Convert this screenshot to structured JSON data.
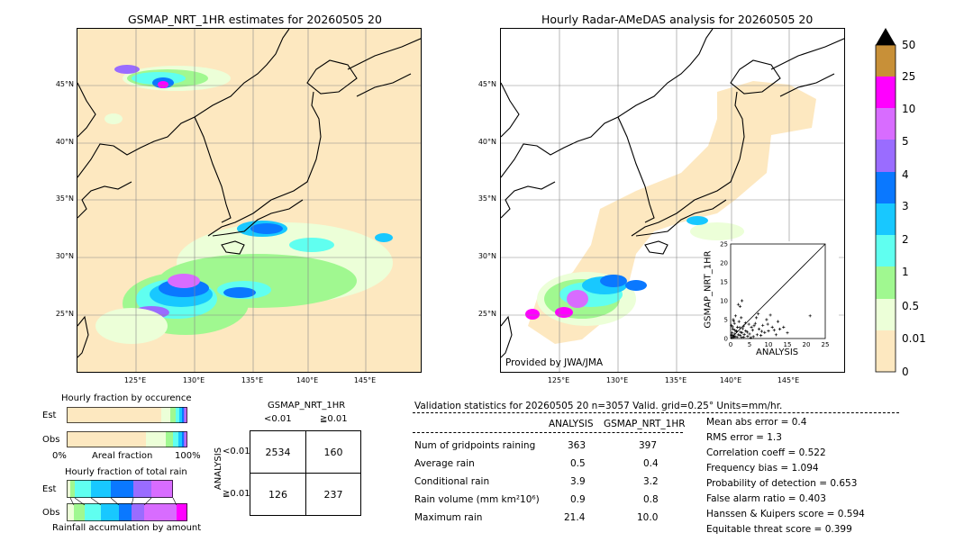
{
  "left_map": {
    "title": "GSMAP_NRT_1HR estimates for 20260505 20",
    "lat_labels": [
      "45°N",
      "40°N",
      "35°N",
      "30°N",
      "25°N"
    ],
    "lon_labels": [
      "125°E",
      "130°E",
      "135°E",
      "140°E",
      "145°E"
    ]
  },
  "right_map": {
    "title": "Hourly Radar-AMeDAS analysis for 20260505 20",
    "lat_labels": [
      "45°N",
      "40°N",
      "35°N",
      "30°N",
      "25°N"
    ],
    "lon_labels": [
      "125°E",
      "130°E",
      "135°E",
      "140°E",
      "145°E"
    ],
    "credit": "Provided by JWA/JMA"
  },
  "colorbar": {
    "levels": [
      "0",
      "0.01",
      "0.5",
      "1",
      "2",
      "3",
      "4",
      "5",
      "10",
      "25",
      "50"
    ],
    "colors": [
      "#fde8c0",
      "#ecffd8",
      "#a0f890",
      "#60fff0",
      "#18c8ff",
      "#0a78ff",
      "#9a6cff",
      "#d86cff",
      "#ff00ff",
      "#c89038",
      "#000000"
    ]
  },
  "scatter": {
    "xlabel": "ANALYSIS",
    "ylabel": "GSMAP_NRT_1HR",
    "ticks": [
      "0",
      "5",
      "10",
      "15",
      "20",
      "25"
    ]
  },
  "occurrence": {
    "title": "Hourly fraction by occurence",
    "rows": [
      "Est",
      "Obs"
    ],
    "axis_left": "0%",
    "axis_mid": "Areal fraction",
    "axis_right": "100%"
  },
  "total_rain": {
    "title": "Hourly fraction of total rain",
    "rows": [
      "Est",
      "Obs"
    ],
    "footer": "Rainfall accumulation by amount"
  },
  "contingency": {
    "header": "GSMAP_NRT_1HR",
    "col_labels": [
      "<0.01",
      "≧0.01"
    ],
    "row_axis": "ANALYSIS",
    "row_labels": [
      "<0.01",
      "≧0.01"
    ],
    "cells": [
      [
        "2534",
        "160"
      ],
      [
        "126",
        "237"
      ]
    ]
  },
  "validation": {
    "header": "Validation statistics for 20260505 20  n=3057 Valid. grid=0.25°  Units=mm/hr.",
    "col_analysis": "ANALYSIS",
    "col_gsmap": "GSMAP_NRT_1HR",
    "rows": [
      {
        "label": "Num of gridpoints raining",
        "analysis": "363",
        "gsmap": "397"
      },
      {
        "label": "Average rain",
        "analysis": "0.5",
        "gsmap": "0.4"
      },
      {
        "label": "Conditional rain",
        "analysis": "3.9",
        "gsmap": "3.2"
      },
      {
        "label": "Rain volume (mm km²10⁶)",
        "analysis": "0.9",
        "gsmap": "0.8"
      },
      {
        "label": "Maximum rain",
        "analysis": "21.4",
        "gsmap": "10.0"
      }
    ],
    "scores": [
      "Mean abs error =    0.4",
      "RMS error =    1.3",
      "Correlation coeff =  0.522",
      "Frequency bias =  1.094",
      "Probability of detection =  0.653",
      "False alarm ratio =  0.403",
      "Hanssen & Kuipers score =  0.594",
      "Equitable threat score =  0.399"
    ]
  },
  "chart_data": {
    "type": "scatter",
    "xlabel": "ANALYSIS",
    "ylabel": "GSMAP_NRT_1HR",
    "xlim": [
      0,
      25
    ],
    "ylim": [
      0,
      25
    ],
    "points": [
      [
        0.3,
        0.2
      ],
      [
        0.5,
        0.8
      ],
      [
        0.8,
        0.3
      ],
      [
        1.0,
        1.2
      ],
      [
        1.2,
        0.5
      ],
      [
        0.4,
        1.5
      ],
      [
        1.5,
        2.0
      ],
      [
        2.0,
        1.0
      ],
      [
        0.6,
        2.5
      ],
      [
        2.5,
        0.8
      ],
      [
        1.8,
        3.0
      ],
      [
        3.0,
        1.5
      ],
      [
        0.2,
        3.5
      ],
      [
        3.5,
        0.4
      ],
      [
        1.0,
        4.0
      ],
      [
        4.0,
        2.0
      ],
      [
        2.2,
        4.5
      ],
      [
        4.5,
        0.6
      ],
      [
        0.7,
        5.0
      ],
      [
        5.0,
        1.2
      ],
      [
        2.8,
        5.5
      ],
      [
        5.5,
        3.0
      ],
      [
        1.3,
        6.0
      ],
      [
        6.0,
        0.5
      ],
      [
        3.2,
        2.6
      ],
      [
        6.5,
        4.0
      ],
      [
        7.0,
        1.0
      ],
      [
        7.5,
        2.5
      ],
      [
        8.0,
        0.8
      ],
      [
        8.5,
        3.5
      ],
      [
        2.0,
        9.0
      ],
      [
        9.0,
        1.6
      ],
      [
        9.5,
        5.0
      ],
      [
        10.0,
        2.0
      ],
      [
        11.0,
        3.0
      ],
      [
        12.0,
        1.0
      ],
      [
        12.5,
        4.5
      ],
      [
        13.0,
        2.5
      ],
      [
        14.0,
        3.0
      ],
      [
        15.0,
        1.5
      ],
      [
        3.0,
        10.0
      ],
      [
        2.5,
        8.5
      ],
      [
        21.0,
        6.0
      ],
      [
        1.5,
        1.8
      ],
      [
        0.9,
        0.6
      ],
      [
        2.4,
        2.9
      ],
      [
        3.6,
        1.1
      ],
      [
        4.8,
        3.8
      ],
      [
        5.8,
        2.2
      ],
      [
        6.8,
        5.5
      ],
      [
        1.1,
        2.2
      ],
      [
        0.5,
        3.1
      ],
      [
        2.9,
        0.3
      ],
      [
        3.9,
        4.1
      ],
      [
        4.4,
        1.7
      ],
      [
        5.3,
        0.2
      ],
      [
        6.2,
        3.4
      ],
      [
        7.3,
        6.5
      ],
      [
        8.2,
        1.9
      ],
      [
        0.2,
        0.9
      ],
      [
        1.7,
        0.4
      ],
      [
        2.6,
        1.7
      ],
      [
        3.4,
        3.3
      ],
      [
        0.8,
        4.6
      ],
      [
        9.8,
        3.8
      ],
      [
        10.5,
        6.2
      ],
      [
        11.5,
        2.2
      ]
    ]
  }
}
